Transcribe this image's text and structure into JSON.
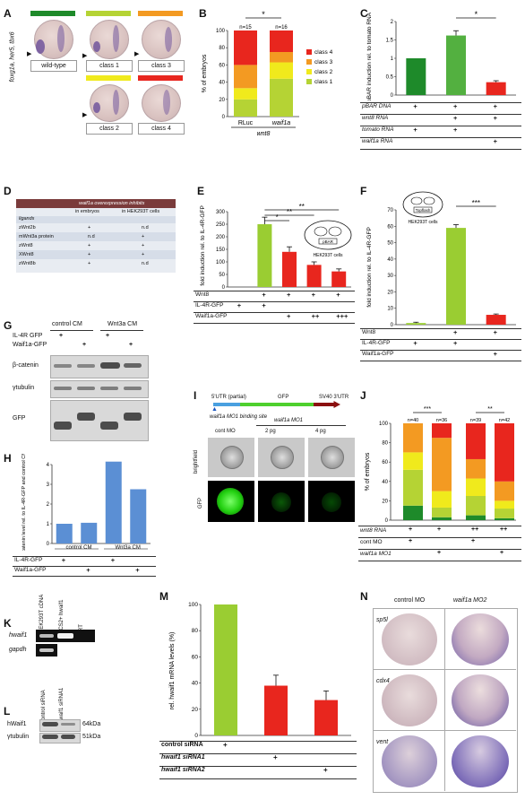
{
  "panels": {
    "A": {
      "letter": "A",
      "ylabel": "foxg1a, her5, tbx6",
      "classes": [
        {
          "label": "wild-type",
          "color": "#1e8a2a"
        },
        {
          "label": "class 1",
          "color": "#b5d334"
        },
        {
          "label": "class 3",
          "color": "#f39a22"
        },
        {
          "label": "class 2",
          "color": "#f0ea1c"
        },
        {
          "label": "class 4",
          "color": "#e8261e"
        }
      ]
    },
    "B": {
      "letter": "B",
      "star": "*",
      "group_label": "wnt8"
    },
    "C": {
      "letter": "C",
      "star": "*",
      "rows": [
        {
          "label": "pBAR DNA",
          "marks": [
            "+",
            "+",
            "+"
          ]
        },
        {
          "label": "wnt8 RNA",
          "marks": [
            "",
            "+",
            "+"
          ]
        },
        {
          "label": "tomato RNA",
          "marks": [
            "+",
            "+",
            ""
          ]
        },
        {
          "label": "waif1a RNA",
          "marks": [
            "",
            "",
            "+"
          ]
        }
      ]
    },
    "D": {
      "letter": "D",
      "title": "waif1a overexpression inhibits",
      "col1": "in embryos",
      "col2": "in HEK293T cells",
      "section": "ligands",
      "rows": [
        {
          "name": "zWnt2b",
          "a": "+",
          "b": "n.d"
        },
        {
          "name": "mWnt3a protein",
          "a": "n.d",
          "b": "+"
        },
        {
          "name": "zWnt8",
          "a": "+",
          "b": "+"
        },
        {
          "name": "XWnt8",
          "a": "+",
          "b": "+"
        },
        {
          "name": "zWnt8b",
          "a": "+",
          "b": "n.d"
        }
      ]
    },
    "E": {
      "letter": "E",
      "stars": [
        "*",
        "**",
        "**"
      ],
      "cell_label": "HEK293T cells",
      "plasmid": "pBAR",
      "rows": [
        {
          "label": "Wnt8",
          "marks": [
            "",
            "+",
            "+",
            "+",
            "+"
          ]
        },
        {
          "label": "IL-4R-GFP",
          "marks": [
            "+",
            "+",
            "",
            "",
            ""
          ]
        },
        {
          "label": "Waif1a-GFP",
          "marks": [
            "",
            "",
            "+",
            "++",
            "+++"
          ]
        }
      ]
    },
    "F": {
      "letter": "F",
      "stars": "***",
      "cell_label": "HEK293T cells",
      "plasmid": "Topflash",
      "rows": [
        {
          "label": "Wnt8",
          "marks": [
            "",
            "+",
            "+"
          ]
        },
        {
          "label": "IL-4R-GFP",
          "marks": [
            "+",
            "+",
            ""
          ]
        },
        {
          "label": "Waif1a-GFP",
          "marks": [
            "",
            "",
            "+"
          ]
        }
      ]
    },
    "G": {
      "letter": "G",
      "cm1": "control CM",
      "cm2": "Wnt3a CM",
      "row1": "IL-4R GFP",
      "row2": "Waif1a-GFP",
      "marks1": [
        "+",
        "",
        "+",
        ""
      ],
      "marks2": [
        "",
        "+",
        "",
        "+"
      ],
      "blot1": "β-catenin",
      "blot2": "γtubulin",
      "blot3": "GFP"
    },
    "H": {
      "letter": "H",
      "cm1": "control CM",
      "cm2": "Wnt3a CM",
      "rows": [
        {
          "label": "IL-4R-GFP",
          "marks": [
            "+",
            "",
            "+",
            ""
          ]
        },
        {
          "label": "Waif1a-GFP",
          "marks": [
            "",
            "+",
            "",
            "+"
          ]
        }
      ]
    },
    "I": {
      "letter": "I",
      "utr5": "5'UTR (partial)",
      "gfp": "GFP",
      "mo": "waif1a MO1",
      "utr3": "SV40 3'UTR",
      "site": "waif1a MO1 binding site",
      "cont": "cont MO",
      "dose1": "2 pg",
      "dose2": "4 pg",
      "row_bf": "brightfield",
      "row_gfp": "GFP"
    },
    "J": {
      "letter": "J",
      "stars1": "***",
      "stars2": "**",
      "n": [
        "n=40",
        "n=36",
        "n=39",
        "n=42"
      ],
      "rows": [
        {
          "label": "wnt8 RNA",
          "marks": [
            "+",
            "+",
            "++",
            "++"
          ]
        },
        {
          "label": "cont MO",
          "marks": [
            "+",
            "",
            "+",
            ""
          ]
        },
        {
          "label": "waif1a MO1",
          "marks": [
            "",
            "+",
            "",
            "+"
          ]
        }
      ]
    },
    "K": {
      "letter": "K",
      "lanes": [
        "HEK293T cDNA",
        "pCS2+ hwaif1",
        "-RT"
      ],
      "genes": [
        "hwaif1",
        "gapdh"
      ]
    },
    "L": {
      "letter": "L",
      "lanes": [
        "control siRNA",
        "hwaif1 siRNA1"
      ],
      "rows": [
        "hWaif1",
        "γtubulin"
      ],
      "sizes": [
        "64kDa",
        "51kDa"
      ]
    },
    "M": {
      "letter": "M",
      "rows": [
        {
          "label": "control siRNA",
          "marks": [
            "+",
            "",
            ""
          ]
        },
        {
          "label": "hwaif1 siRNA1",
          "marks": [
            "",
            "+",
            ""
          ]
        },
        {
          "label": "hwaif1 siRNA2",
          "marks": [
            "",
            "",
            "+"
          ]
        }
      ]
    },
    "N": {
      "letter": "N",
      "cols": [
        "control MO",
        "waif1a MO2"
      ],
      "genes": [
        "sp5l",
        "cdx4",
        "vent"
      ]
    }
  },
  "chart_data": [
    {
      "panel": "B",
      "type": "bar",
      "stacked": true,
      "categories": [
        "RLuc",
        "waif1a"
      ],
      "n_labels": [
        "n=15",
        "n=16"
      ],
      "ylabel": "% of embryos",
      "ylim": [
        0,
        100
      ],
      "yticks": [
        0,
        20,
        40,
        60,
        80,
        100
      ],
      "legend": [
        "class 4",
        "class 3",
        "class 2",
        "class 1"
      ],
      "colors": {
        "class 1": "#b5d334",
        "class 2": "#f0ea1c",
        "class 3": "#f39a22",
        "class 4": "#e8261e"
      },
      "series": [
        {
          "name": "class 1",
          "values": [
            20,
            44
          ]
        },
        {
          "name": "class 2",
          "values": [
            13,
            19
          ]
        },
        {
          "name": "class 3",
          "values": [
            27,
            12
          ]
        },
        {
          "name": "class 4",
          "values": [
            40,
            25
          ]
        }
      ]
    },
    {
      "panel": "C",
      "type": "bar",
      "ylabel": "pBAR induction rel. to tomato RNA",
      "ylim": [
        0,
        2
      ],
      "yticks": [
        0,
        0.5,
        1,
        1.5,
        2
      ],
      "values": [
        1.0,
        1.62,
        0.35
      ],
      "errors": [
        0,
        0.13,
        0.04
      ],
      "colors": [
        "#1e8a2a",
        "#53b040",
        "#e8261e"
      ]
    },
    {
      "panel": "E",
      "type": "bar",
      "ylabel": "fold induction rel. to IL-4R-GFP",
      "ylim": [
        0,
        300
      ],
      "yticks": [
        0,
        50,
        100,
        150,
        200,
        250,
        300
      ],
      "values": [
        0,
        250,
        140,
        88,
        62
      ],
      "errors": [
        0,
        28,
        20,
        12,
        10
      ],
      "colors": [
        "#9acd32",
        "#9acd32",
        "#e8261e",
        "#e8261e",
        "#e8261e"
      ]
    },
    {
      "panel": "F",
      "type": "bar",
      "ylabel": "fold induction rel. to IL-4R-GFP",
      "ylim": [
        0,
        70
      ],
      "yticks": [
        0,
        10,
        20,
        30,
        40,
        50,
        60,
        70
      ],
      "values": [
        1,
        59,
        6
      ],
      "errors": [
        0.5,
        2,
        0.5
      ],
      "colors": [
        "#9acd32",
        "#9acd32",
        "#e8261e"
      ]
    },
    {
      "panel": "H",
      "type": "bar",
      "ylabel": "β-catenin level rel. to IL-4R-GFP and control CM",
      "ylim": [
        0,
        4
      ],
      "yticks": [
        0,
        1,
        2,
        3,
        4
      ],
      "values": [
        1.0,
        1.05,
        4.15,
        2.75
      ],
      "colors": [
        "#5b8fd4",
        "#5b8fd4",
        "#5b8fd4",
        "#5b8fd4"
      ]
    },
    {
      "panel": "J",
      "type": "bar",
      "stacked": true,
      "ylabel": "% of embryos",
      "ylim": [
        0,
        100
      ],
      "yticks": [
        0,
        20,
        40,
        60,
        80,
        100
      ],
      "categories": [
        "1",
        "2",
        "3",
        "4"
      ],
      "colors": {
        "wild-type": "#1e8a2a",
        "class 1": "#b5d334",
        "class 2": "#f0ea1c",
        "class 3": "#f39a22",
        "class 4": "#e8261e"
      },
      "series": [
        {
          "name": "wild-type",
          "values": [
            15,
            3,
            5,
            2
          ]
        },
        {
          "name": "class 1",
          "values": [
            37,
            10,
            20,
            10
          ]
        },
        {
          "name": "class 2",
          "values": [
            18,
            17,
            18,
            8
          ]
        },
        {
          "name": "class 3",
          "values": [
            30,
            55,
            20,
            20
          ]
        },
        {
          "name": "class 4",
          "values": [
            0,
            15,
            37,
            60
          ]
        }
      ]
    },
    {
      "panel": "M",
      "type": "bar",
      "ylabel": "rel. hwaif1 mRNA levels (%)",
      "ylim": [
        0,
        100
      ],
      "yticks": [
        0,
        20,
        40,
        60,
        80,
        100
      ],
      "values": [
        100,
        38,
        27
      ],
      "errors": [
        0,
        8,
        7
      ],
      "colors": [
        "#9acd32",
        "#e8261e",
        "#e8261e"
      ]
    }
  ]
}
